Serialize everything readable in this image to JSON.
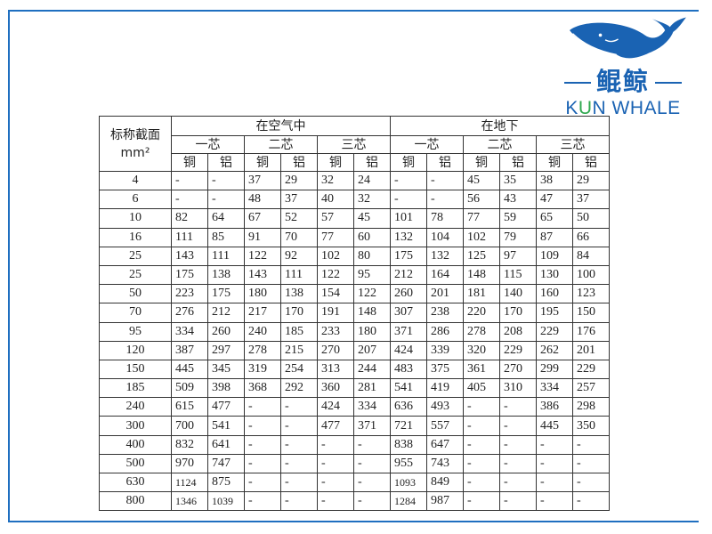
{
  "logo": {
    "chinese": "鲲鲸",
    "english_part1": "K",
    "english_part2": "U",
    "english_part3": "N WHALE",
    "brand_color": "#1a63b3",
    "accent_color": "#2fa84f"
  },
  "table": {
    "corner_label": "标称截面",
    "corner_unit": "mm²",
    "groups": [
      "在空气中",
      "在地下"
    ],
    "cores": [
      "一芯",
      "二芯",
      "三芯",
      "一芯",
      "二芯",
      "三芯"
    ],
    "materials": [
      "铜",
      "铝",
      "铜",
      "铝",
      "铜",
      "铝",
      "铜",
      "铝",
      "铜",
      "铝",
      "铜",
      "铝"
    ],
    "rows": [
      [
        "4",
        "-",
        "-",
        "37",
        "29",
        "32",
        "24",
        "-",
        "-",
        "45",
        "35",
        "38",
        "29"
      ],
      [
        "6",
        "-",
        "-",
        "48",
        "37",
        "40",
        "32",
        "-",
        "-",
        "56",
        "43",
        "47",
        "37"
      ],
      [
        "10",
        "82",
        "64",
        "67",
        "52",
        "57",
        "45",
        "101",
        "78",
        "77",
        "59",
        "65",
        "50"
      ],
      [
        "16",
        "111",
        "85",
        "91",
        "70",
        "77",
        "60",
        "132",
        "104",
        "102",
        "79",
        "87",
        "66"
      ],
      [
        "25",
        "143",
        "111",
        "122",
        "92",
        "102",
        "80",
        "175",
        "132",
        "125",
        "97",
        "109",
        "84"
      ],
      [
        "25",
        "175",
        "138",
        "143",
        "111",
        "122",
        "95",
        "212",
        "164",
        "148",
        "115",
        "130",
        "100"
      ],
      [
        "50",
        "223",
        "175",
        "180",
        "138",
        "154",
        "122",
        "260",
        "201",
        "181",
        "140",
        "160",
        "123"
      ],
      [
        "70",
        "276",
        "212",
        "217",
        "170",
        "191",
        "148",
        "307",
        "238",
        "220",
        "170",
        "195",
        "150"
      ],
      [
        "95",
        "334",
        "260",
        "240",
        "185",
        "233",
        "180",
        "371",
        "286",
        "278",
        "208",
        "229",
        "176"
      ],
      [
        "120",
        "387",
        "297",
        "278",
        "215",
        "270",
        "207",
        "424",
        "339",
        "320",
        "229",
        "262",
        "201"
      ],
      [
        "150",
        "445",
        "345",
        "319",
        "254",
        "313",
        "244",
        "483",
        "375",
        "361",
        "270",
        "299",
        "229"
      ],
      [
        "185",
        "509",
        "398",
        "368",
        "292",
        "360",
        "281",
        "541",
        "419",
        "405",
        "310",
        "334",
        "257"
      ],
      [
        "240",
        "615",
        "477",
        "-",
        "-",
        "424",
        "334",
        "636",
        "493",
        "-",
        "-",
        "386",
        "298"
      ],
      [
        "300",
        "700",
        "541",
        "-",
        "-",
        "477",
        "371",
        "721",
        "557",
        "-",
        "-",
        "445",
        "350"
      ],
      [
        "400",
        "832",
        "641",
        "-",
        "-",
        "-",
        "-",
        "838",
        "647",
        "-",
        "-",
        "-",
        "-"
      ],
      [
        "500",
        "970",
        "747",
        "-",
        "-",
        "-",
        "-",
        "955",
        "743",
        "-",
        "-",
        "-",
        "-"
      ],
      [
        "630",
        "1124",
        "875",
        "-",
        "-",
        "-",
        "-",
        "1093",
        "849",
        "-",
        "-",
        "-",
        "-"
      ],
      [
        "800",
        "1346",
        "1039",
        "-",
        "-",
        "-",
        "-",
        "1284",
        "987",
        "-",
        "-",
        "-",
        "-"
      ]
    ]
  }
}
